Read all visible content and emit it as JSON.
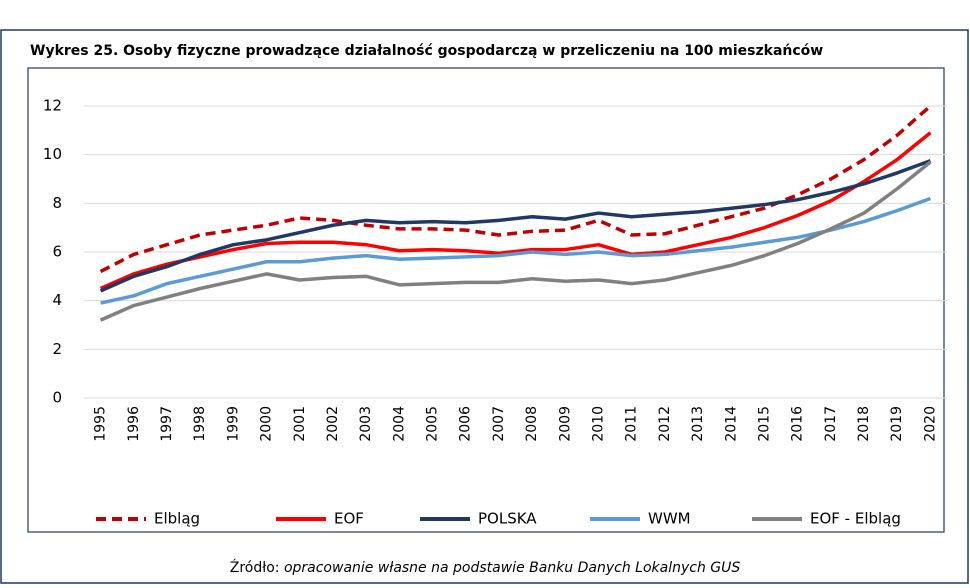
{
  "chart_data": {
    "type": "line",
    "title": "Wykres 25. Osoby fizyczne prowadzące działalność gospodarczą w przeliczeniu na 100 mieszkańców",
    "source_label": "Źródło: ",
    "source_text": "opracowanie własne na podstawie Banku Danych Lokalnych GUS",
    "categories": [
      "1995",
      "1996",
      "1997",
      "1998",
      "1999",
      "2000",
      "2001",
      "2002",
      "2003",
      "2004",
      "2005",
      "2006",
      "2007",
      "2008",
      "2009",
      "2010",
      "2011",
      "2012",
      "2013",
      "2014",
      "2015",
      "2016",
      "2017",
      "2018",
      "2019",
      "2020"
    ],
    "ylim": [
      0,
      12
    ],
    "yticks": [
      0,
      2,
      4,
      6,
      8,
      10,
      12
    ],
    "grid": true,
    "legend": "bottom",
    "series": [
      {
        "name": "Elbląg",
        "color": "#c00000",
        "dashed": true,
        "values": [
          5.2,
          5.9,
          6.3,
          6.7,
          6.9,
          7.1,
          7.4,
          7.3,
          7.1,
          6.95,
          6.95,
          6.9,
          6.7,
          6.85,
          6.9,
          7.3,
          6.7,
          6.75,
          7.1,
          7.45,
          7.8,
          8.35,
          9.0,
          9.8,
          10.8,
          12.0
        ]
      },
      {
        "name": "EOF",
        "color": "#ff0000",
        "values": [
          4.5,
          5.1,
          5.5,
          5.8,
          6.1,
          6.35,
          6.4,
          6.4,
          6.3,
          6.05,
          6.1,
          6.05,
          5.95,
          6.1,
          6.1,
          6.3,
          5.9,
          6.0,
          6.3,
          6.6,
          7.0,
          7.5,
          8.1,
          8.9,
          9.8,
          10.9
        ]
      },
      {
        "name": "POLSKA",
        "color": "#1f3864",
        "values": [
          4.4,
          5.0,
          5.4,
          5.9,
          6.3,
          6.5,
          6.8,
          7.1,
          7.3,
          7.2,
          7.25,
          7.2,
          7.3,
          7.45,
          7.35,
          7.6,
          7.45,
          7.55,
          7.65,
          7.8,
          7.95,
          8.15,
          8.45,
          8.8,
          9.25,
          9.75
        ]
      },
      {
        "name": "WWM",
        "color": "#5b9bd5",
        "values": [
          3.9,
          4.2,
          4.7,
          5.0,
          5.3,
          5.6,
          5.6,
          5.75,
          5.85,
          5.7,
          5.75,
          5.8,
          5.85,
          6.0,
          5.9,
          6.0,
          5.85,
          5.9,
          6.05,
          6.2,
          6.4,
          6.6,
          6.9,
          7.25,
          7.7,
          8.2
        ]
      },
      {
        "name": "EOF - Elbląg",
        "color": "#808080",
        "values": [
          3.2,
          3.8,
          4.15,
          4.5,
          4.8,
          5.1,
          4.85,
          4.95,
          5.0,
          4.65,
          4.7,
          4.75,
          4.75,
          4.9,
          4.8,
          4.85,
          4.7,
          4.85,
          5.15,
          5.45,
          5.85,
          6.35,
          6.95,
          7.6,
          8.6,
          9.7
        ]
      }
    ]
  }
}
